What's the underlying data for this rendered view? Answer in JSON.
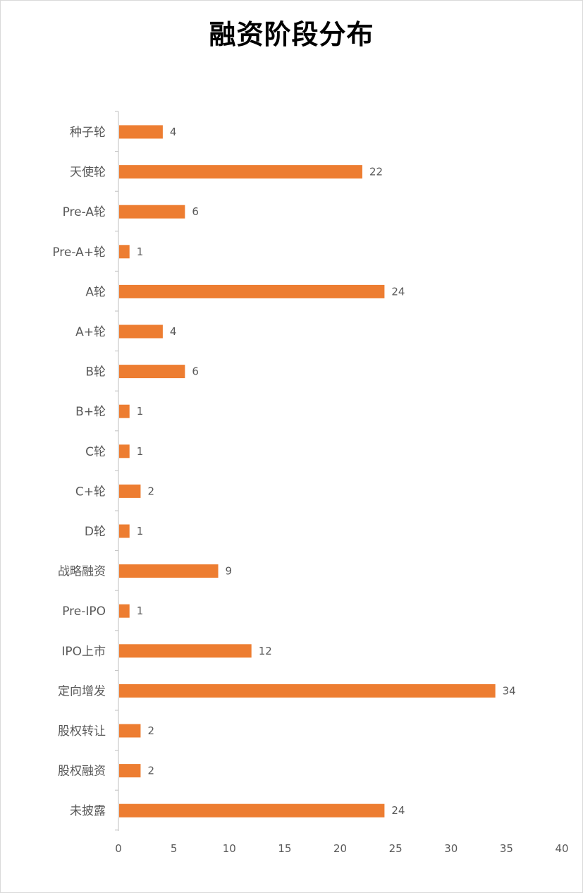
{
  "chart_data": {
    "type": "bar",
    "orientation": "horizontal",
    "title": "融资阶段分布",
    "categories": [
      "种子轮",
      "天使轮",
      "Pre-A轮",
      "Pre-A+轮",
      "A轮",
      "A+轮",
      "B轮",
      "B+轮",
      "C轮",
      "C+轮",
      "D轮",
      "战略融资",
      "Pre-IPO",
      "IPO上市",
      "定向增发",
      "股权转让",
      "股权融资",
      "未披露"
    ],
    "values": [
      4,
      22,
      6,
      1,
      24,
      4,
      6,
      1,
      1,
      2,
      1,
      9,
      1,
      12,
      34,
      2,
      2,
      24
    ],
    "xlim": [
      0,
      40
    ],
    "xticks": [
      0,
      5,
      10,
      15,
      20,
      25,
      30,
      35,
      40
    ],
    "bar_color": "#ED7D31",
    "grid": false,
    "legend": false,
    "data_labels": true
  }
}
